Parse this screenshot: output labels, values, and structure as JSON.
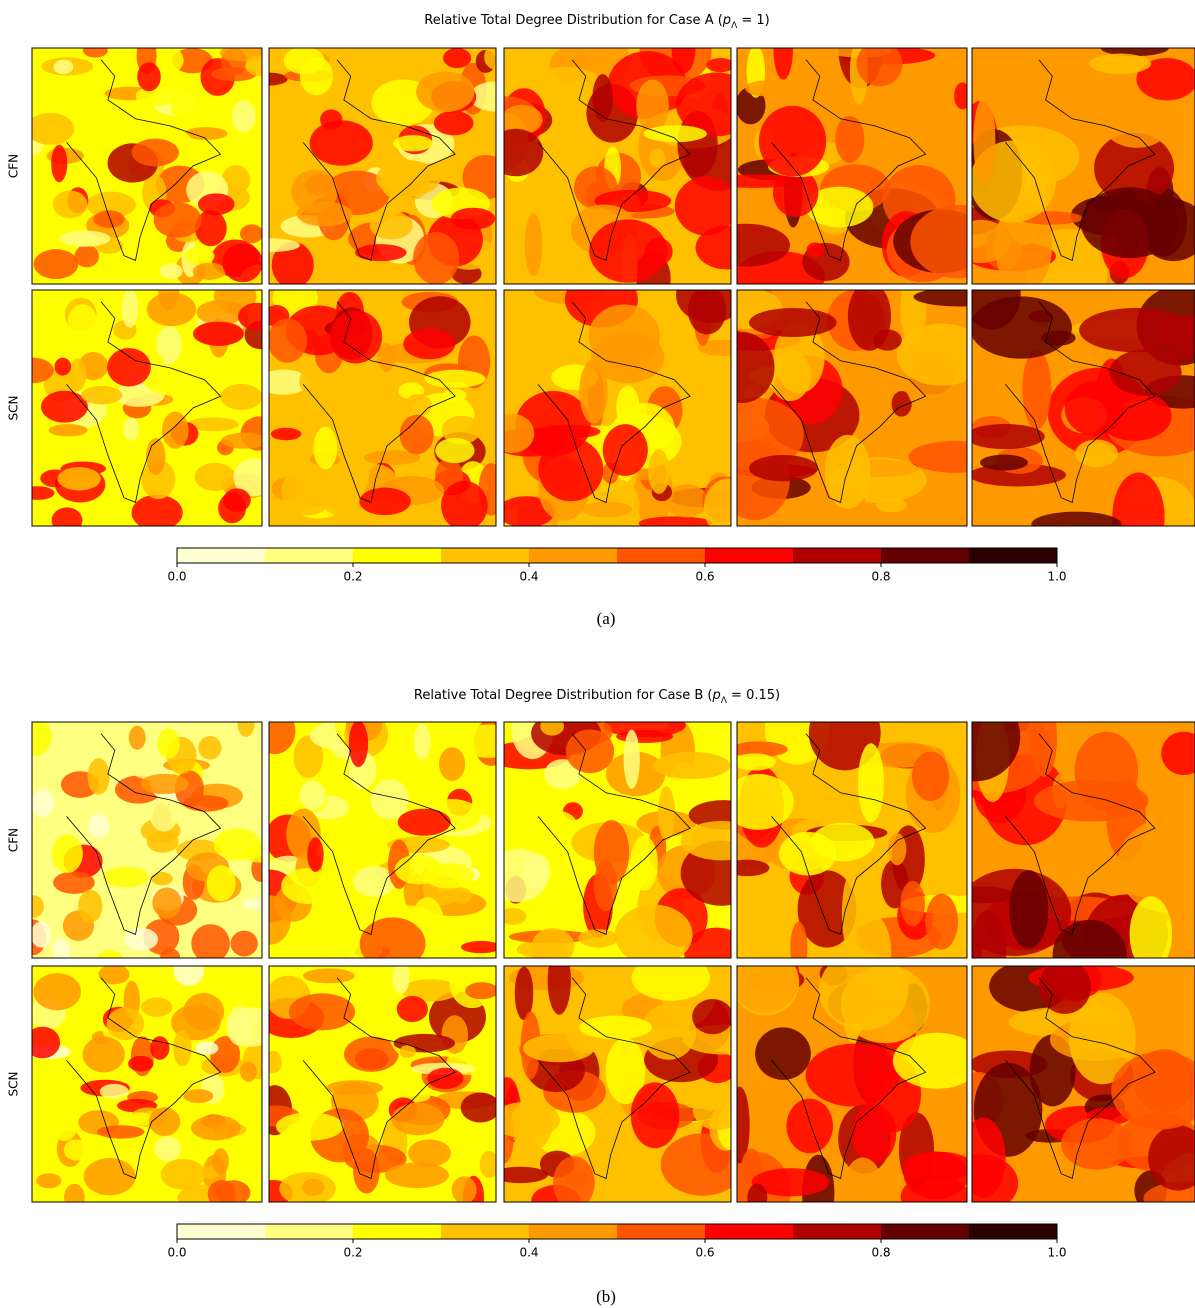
{
  "figures": [
    {
      "title": [
        "Relative Total Degree Distribution for Case A (",
        "p",
        "Λ",
        " = 1)"
      ],
      "row_labels": [
        "CFN",
        "SCN"
      ],
      "colorbar": {
        "bins": [
          0,
          0.1,
          0.2,
          0.3,
          0.4,
          0.5,
          0.6,
          0.7,
          0.8,
          0.9,
          1.0
        ],
        "colors": [
          "#ffffd2",
          "#ffff80",
          "#ffff00",
          "#ffc000",
          "#ff9900",
          "#ff5500",
          "#ff0000",
          "#b00000",
          "#650000",
          "#2a0000"
        ],
        "ticks": [
          {
            "value": 0,
            "label": "0.0"
          },
          {
            "value": 0.2,
            "label": "0.2"
          },
          {
            "value": 0.4,
            "label": "0.4"
          },
          {
            "value": 0.6,
            "label": "0.6"
          },
          {
            "value": 0.8,
            "label": "0.8"
          },
          {
            "value": 1,
            "label": "1.0"
          }
        ]
      },
      "caption": "(a)"
    },
    {
      "title": [
        "Relative Total Degree Distribution for Case B (",
        "p",
        "Λ",
        " = 0.15)"
      ],
      "row_labels": [
        "CFN",
        "SCN"
      ],
      "colorbar": {
        "bins": [
          0,
          0.1,
          0.2,
          0.3,
          0.4,
          0.5,
          0.6,
          0.7,
          0.8,
          0.9,
          1.0
        ],
        "colors": [
          "#ffffd2",
          "#ffff80",
          "#ffff00",
          "#ffc000",
          "#ff9900",
          "#ff5500",
          "#ff0000",
          "#b00000",
          "#650000",
          "#2a0000"
        ],
        "ticks": [
          {
            "value": 0,
            "label": "0.0"
          },
          {
            "value": 0.2,
            "label": "0.2"
          },
          {
            "value": 0.4,
            "label": "0.4"
          },
          {
            "value": 0.6,
            "label": "0.6"
          },
          {
            "value": 0.8,
            "label": "0.8"
          },
          {
            "value": 1,
            "label": "1.0"
          }
        ]
      },
      "caption": "(b)"
    }
  ]
}
